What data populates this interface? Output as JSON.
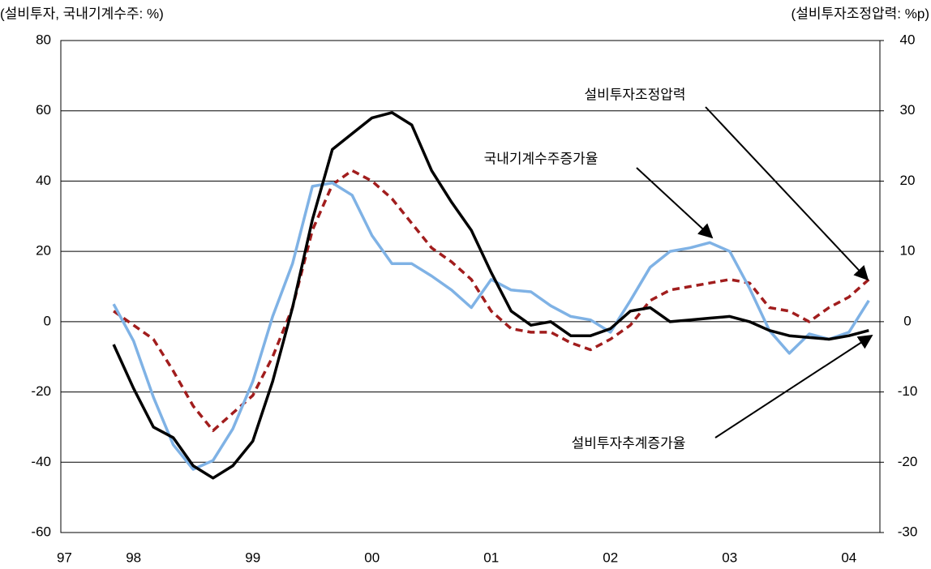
{
  "chart_data": {
    "type": "line",
    "y_label": "(설비투자, 국내기계수주: %)",
    "y2_label": "(설비투자조정압력: %p)",
    "x": [
      1997.833,
      1998.0,
      1998.167,
      1998.333,
      1998.5,
      1998.667,
      1998.833,
      1999.0,
      1999.167,
      1999.333,
      1999.5,
      1999.667,
      1999.833,
      2000.0,
      2000.167,
      2000.333,
      2000.5,
      2000.667,
      2000.833,
      2001.0,
      2001.167,
      2001.333,
      2001.5,
      2001.667,
      2001.833,
      2002.0,
      2002.167,
      2002.333,
      2002.5,
      2002.667,
      2002.833,
      2003.0,
      2003.167,
      2003.333,
      2003.5,
      2003.667,
      2003.833,
      2004.0,
      2004.167
    ],
    "series": [
      {
        "name": "설비투자조정압력",
        "color": "#a11d1d",
        "dashed": true,
        "axis": "y2",
        "values": [
          1.5,
          -0.5,
          -2.5,
          -7,
          -12,
          -15.5,
          -13,
          -10.5,
          -5,
          2,
          13,
          19.5,
          21.5,
          20,
          17.5,
          14,
          10.5,
          8.5,
          6,
          1.5,
          -1,
          -1.5,
          -1.5,
          -3,
          -4,
          -2.5,
          -0.5,
          3,
          4.5,
          5,
          5.5,
          6,
          5.5,
          2,
          1.5,
          0,
          2,
          3.5,
          6
        ]
      },
      {
        "name": "국내기계수주증가율",
        "color": "#7fb2e5",
        "dashed": false,
        "values": [
          5,
          -5.5,
          -21.5,
          -35,
          -42,
          -39.5,
          -30.5,
          -17,
          1.5,
          16.5,
          38.5,
          39.5,
          36,
          24.5,
          16.5,
          16.5,
          13,
          9,
          4,
          12,
          9,
          8.5,
          4.5,
          1.5,
          0.5,
          -3,
          6,
          15.5,
          20,
          21,
          22.5,
          20,
          9.5,
          -2.5,
          -9,
          -3.5,
          -5,
          -3,
          6
        ]
      },
      {
        "name": "설비투자추계증가율",
        "color": "#000000",
        "dashed": false,
        "values": [
          -6.5,
          -19,
          -30,
          -33,
          -41,
          -44.5,
          -41,
          -34,
          -17,
          4,
          29,
          49,
          53.5,
          58,
          59.5,
          56,
          43,
          34,
          26,
          14,
          3,
          -1,
          0,
          -4,
          -4,
          -2,
          3,
          4,
          0,
          0.5,
          1,
          1.5,
          0,
          -2.5,
          -4,
          -4.5,
          -5,
          -4,
          -2.5
        ]
      }
    ],
    "xlim": [
      1997.39,
      2004.26
    ],
    "xticks": [
      {
        "value": 1997.42,
        "label": "97"
      },
      {
        "value": 1998,
        "label": "98"
      },
      {
        "value": 1999,
        "label": "99"
      },
      {
        "value": 2000,
        "label": "00"
      },
      {
        "value": 2001,
        "label": "01"
      },
      {
        "value": 2002,
        "label": "02"
      },
      {
        "value": 2003,
        "label": "03"
      },
      {
        "value": 2004,
        "label": "04"
      }
    ],
    "ylim": [
      -60,
      80
    ],
    "yticks": [
      -60,
      -40,
      -20,
      0,
      20,
      40,
      60,
      80
    ],
    "y2lim": [
      -30,
      40
    ],
    "y2ticks": [
      -30,
      -20,
      -10,
      0,
      10,
      20,
      30,
      40
    ],
    "grid": true
  }
}
